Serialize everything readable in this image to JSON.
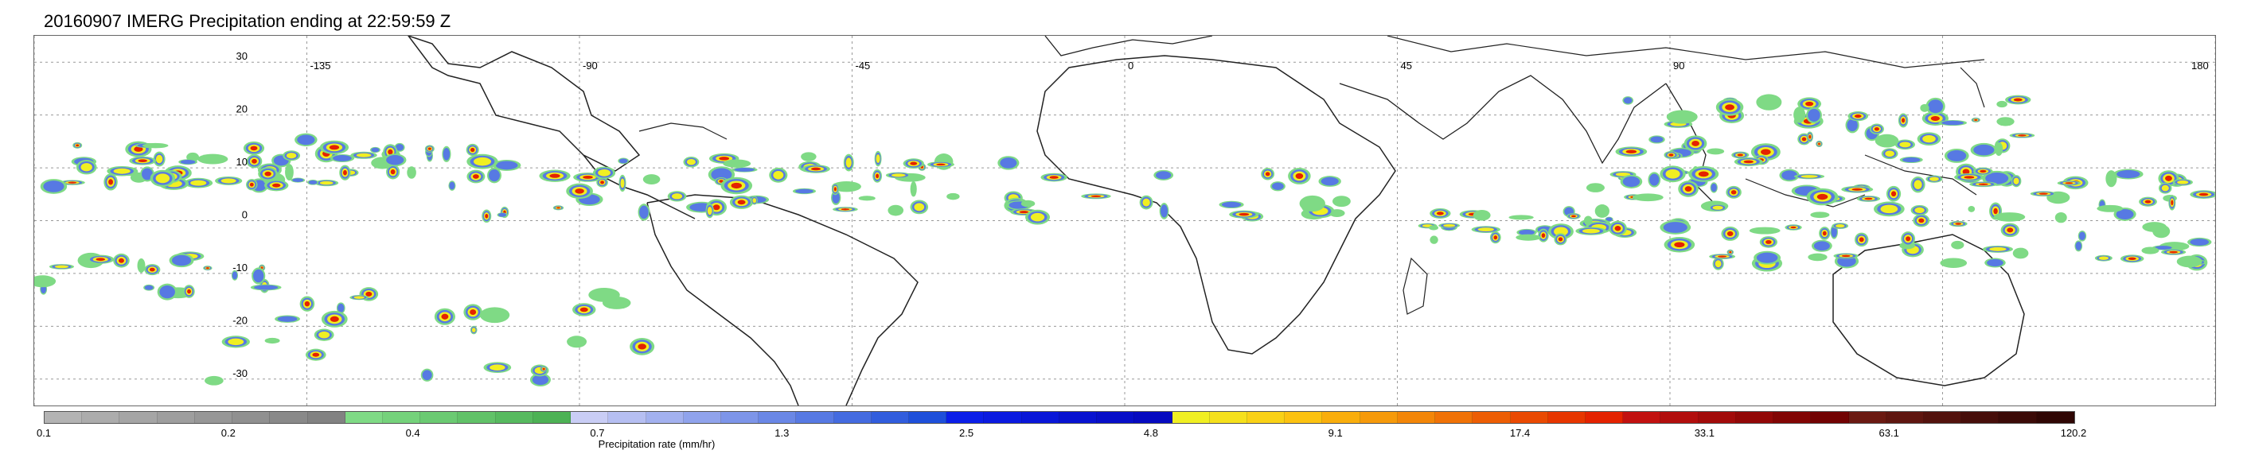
{
  "title": "20160907 IMERG Precipitation ending at 22:59:59 Z",
  "map": {
    "lon_labels": [
      {
        "text": "-135",
        "lon": -135
      },
      {
        "text": "-90",
        "lon": -90
      },
      {
        "text": "-45",
        "lon": -45
      },
      {
        "text": "0",
        "lon": 0
      },
      {
        "text": "45",
        "lon": 45
      },
      {
        "text": "90",
        "lon": 90
      },
      {
        "text": "180",
        "lon": 180
      }
    ],
    "lat_labels": [
      {
        "text": "30",
        "lat": 30
      },
      {
        "text": "20",
        "lat": 20
      },
      {
        "text": "10",
        "lat": 10
      },
      {
        "text": "0",
        "lat": 0
      },
      {
        "text": "-10",
        "lat": -10
      },
      {
        "text": "-20",
        "lat": -20
      },
      {
        "text": "-30",
        "lat": -30
      }
    ],
    "lon_range": [
      -180,
      180
    ],
    "lat_range": [
      -35,
      35
    ],
    "gridlines": true
  },
  "colorbar": {
    "caption": "Precipitation rate (mm/hr)",
    "colors": [
      "#b3b3b3",
      "#acacac",
      "#a5a5a5",
      "#9e9e9e",
      "#979797",
      "#909090",
      "#898989",
      "#828282",
      "#7fda85",
      "#75d27b",
      "#6bca72",
      "#61c268",
      "#57ba5f",
      "#4db255",
      "#c9cdf5",
      "#b6bff2",
      "#a3b1ef",
      "#90a3ec",
      "#7d95e9",
      "#6a87e6",
      "#5779e3",
      "#446be0",
      "#315ddd",
      "#1e4fda",
      "#0b1ee8",
      "#0a1ae0",
      "#0916d8",
      "#0812d0",
      "#070ec8",
      "#060ac0",
      "#f0ef22",
      "#f5e01c",
      "#f9d116",
      "#fcc210",
      "#f9ae0c",
      "#f69a0a",
      "#f38608",
      "#f07206",
      "#ed5e04",
      "#ea4a02",
      "#e73600",
      "#e42200",
      "#c21110",
      "#b20e0d",
      "#a20b0a",
      "#920807",
      "#820504",
      "#720202",
      "#6b1a12",
      "#5f1610",
      "#53120d",
      "#470e0a",
      "#3b0a07",
      "#2f0604"
    ],
    "tick_labels": [
      "0.1",
      "0.2",
      "0.4",
      "0.7",
      "1.3",
      "2.5",
      "4.8",
      "9.1",
      "17.4",
      "33.1",
      "63.1",
      "120.2"
    ]
  }
}
